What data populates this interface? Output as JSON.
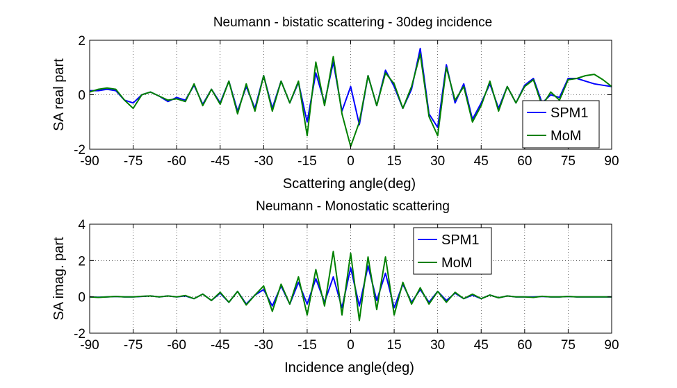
{
  "chart_data": [
    {
      "type": "line",
      "title": "Neumann - bistatic scattering - 30deg incidence",
      "xlabel": "Scattering angle(deg)",
      "ylabel": "SA real part",
      "xlim": [
        -90,
        90
      ],
      "ylim": [
        -2,
        2
      ],
      "xticks": [
        -90,
        -75,
        -60,
        -45,
        -30,
        -15,
        0,
        15,
        30,
        45,
        60,
        75,
        90
      ],
      "yticks": [
        -2,
        0,
        2
      ],
      "grid": true,
      "legend_position": "bottom-right",
      "x": [
        -90,
        -87,
        -84,
        -81,
        -78,
        -75,
        -72,
        -69,
        -66,
        -63,
        -60,
        -57,
        -54,
        -51,
        -48,
        -45,
        -42,
        -39,
        -36,
        -33,
        -30,
        -27,
        -24,
        -21,
        -18,
        -15,
        -12,
        -9,
        -6,
        -3,
        0,
        3,
        6,
        9,
        12,
        15,
        18,
        21,
        24,
        27,
        30,
        33,
        36,
        39,
        42,
        45,
        48,
        51,
        54,
        57,
        60,
        63,
        66,
        69,
        72,
        75,
        78,
        81,
        84,
        87,
        90
      ],
      "series": [
        {
          "name": "SPM1",
          "color": "#0000ff",
          "values": [
            0.15,
            0.15,
            0.2,
            0.15,
            -0.2,
            -0.3,
            0.0,
            0.1,
            -0.05,
            -0.25,
            -0.1,
            -0.2,
            0.35,
            -0.35,
            0.2,
            -0.3,
            0.5,
            -0.6,
            0.3,
            -0.5,
            0.7,
            -0.5,
            0.5,
            -0.3,
            0.45,
            -1.0,
            0.8,
            -0.3,
            1.2,
            -0.6,
            0.3,
            -1.1,
            0.7,
            -0.4,
            0.9,
            0.3,
            -0.5,
            0.2,
            1.7,
            -0.7,
            -1.2,
            1.1,
            -0.3,
            0.4,
            -0.9,
            -0.3,
            0.4,
            -0.5,
            0.3,
            -0.3,
            0.35,
            0.6,
            -0.3,
            0.0,
            -0.1,
            0.6,
            0.6,
            0.5,
            0.4,
            0.35,
            0.3
          ]
        },
        {
          "name": "MoM",
          "color": "#008000",
          "values": [
            0.1,
            0.2,
            0.25,
            0.2,
            -0.2,
            -0.5,
            0.0,
            0.1,
            -0.05,
            -0.2,
            -0.15,
            -0.25,
            0.4,
            -0.4,
            0.2,
            -0.35,
            0.5,
            -0.7,
            0.4,
            -0.6,
            0.7,
            -0.6,
            0.5,
            -0.3,
            0.5,
            -1.5,
            1.2,
            -0.4,
            1.4,
            -0.7,
            -1.9,
            -1.0,
            0.7,
            -0.4,
            0.8,
            0.4,
            -0.5,
            0.3,
            1.5,
            -0.8,
            -1.5,
            1.0,
            -0.2,
            0.3,
            -1.0,
            -0.4,
            0.5,
            -0.6,
            0.3,
            -0.3,
            0.3,
            0.55,
            -0.4,
            0.1,
            -0.2,
            0.55,
            0.6,
            0.7,
            0.75,
            0.55,
            0.3
          ]
        }
      ]
    },
    {
      "type": "line",
      "title": "Neumann - Monostatic scattering",
      "xlabel": "Incidence angle(deg)",
      "ylabel": "SA imag. part",
      "xlim": [
        -90,
        90
      ],
      "ylim": [
        -2,
        4
      ],
      "xticks": [
        -90,
        -75,
        -60,
        -45,
        -30,
        -15,
        0,
        15,
        30,
        45,
        60,
        75,
        90
      ],
      "yticks": [
        -2,
        0,
        2,
        4
      ],
      "grid": true,
      "legend_position": "top-center",
      "x": [
        -90,
        -87,
        -84,
        -81,
        -78,
        -75,
        -72,
        -69,
        -66,
        -63,
        -60,
        -57,
        -54,
        -51,
        -48,
        -45,
        -42,
        -39,
        -36,
        -33,
        -30,
        -27,
        -24,
        -21,
        -18,
        -15,
        -12,
        -9,
        -6,
        -3,
        0,
        3,
        6,
        9,
        12,
        15,
        18,
        21,
        24,
        27,
        30,
        33,
        36,
        39,
        42,
        45,
        48,
        51,
        54,
        57,
        60,
        63,
        66,
        69,
        72,
        75,
        78,
        81,
        84,
        87,
        90
      ],
      "series": [
        {
          "name": "SPM1",
          "color": "#0000ff",
          "values": [
            0.0,
            -0.02,
            0.0,
            0.02,
            0.0,
            0.0,
            0.02,
            0.05,
            0.0,
            0.05,
            0.0,
            0.05,
            -0.1,
            0.15,
            -0.2,
            0.2,
            -0.3,
            0.3,
            -0.4,
            0.1,
            0.4,
            -0.5,
            0.6,
            -0.4,
            0.8,
            -0.4,
            1.0,
            -0.3,
            1.1,
            -0.6,
            1.6,
            -0.5,
            1.7,
            -0.2,
            1.3,
            -0.6,
            0.7,
            -0.3,
            0.4,
            -0.3,
            0.3,
            -0.2,
            0.2,
            -0.1,
            0.1,
            -0.1,
            0.1,
            -0.05,
            0.05,
            0.0,
            0.0,
            0.0,
            0.02,
            0.0,
            0.0,
            0.02,
            0.0,
            0.0,
            0.0,
            0.0,
            0.0
          ]
        },
        {
          "name": "MoM",
          "color": "#008000",
          "values": [
            0.0,
            -0.03,
            0.0,
            0.02,
            0.0,
            0.0,
            0.03,
            0.05,
            0.0,
            0.05,
            0.0,
            0.07,
            -0.1,
            0.15,
            -0.2,
            0.25,
            -0.3,
            0.3,
            -0.45,
            0.1,
            0.6,
            -0.8,
            0.7,
            -0.4,
            1.1,
            -1.0,
            1.5,
            -0.5,
            2.5,
            -1.0,
            2.4,
            -1.3,
            2.2,
            -0.7,
            2.2,
            -1.0,
            0.8,
            -0.4,
            0.5,
            -0.4,
            0.3,
            -0.3,
            0.25,
            -0.1,
            0.15,
            -0.1,
            0.1,
            -0.05,
            0.05,
            0.0,
            0.0,
            -0.03,
            0.03,
            0.0,
            0.0,
            0.02,
            0.0,
            0.0,
            0.0,
            0.0,
            0.0
          ]
        }
      ]
    }
  ]
}
